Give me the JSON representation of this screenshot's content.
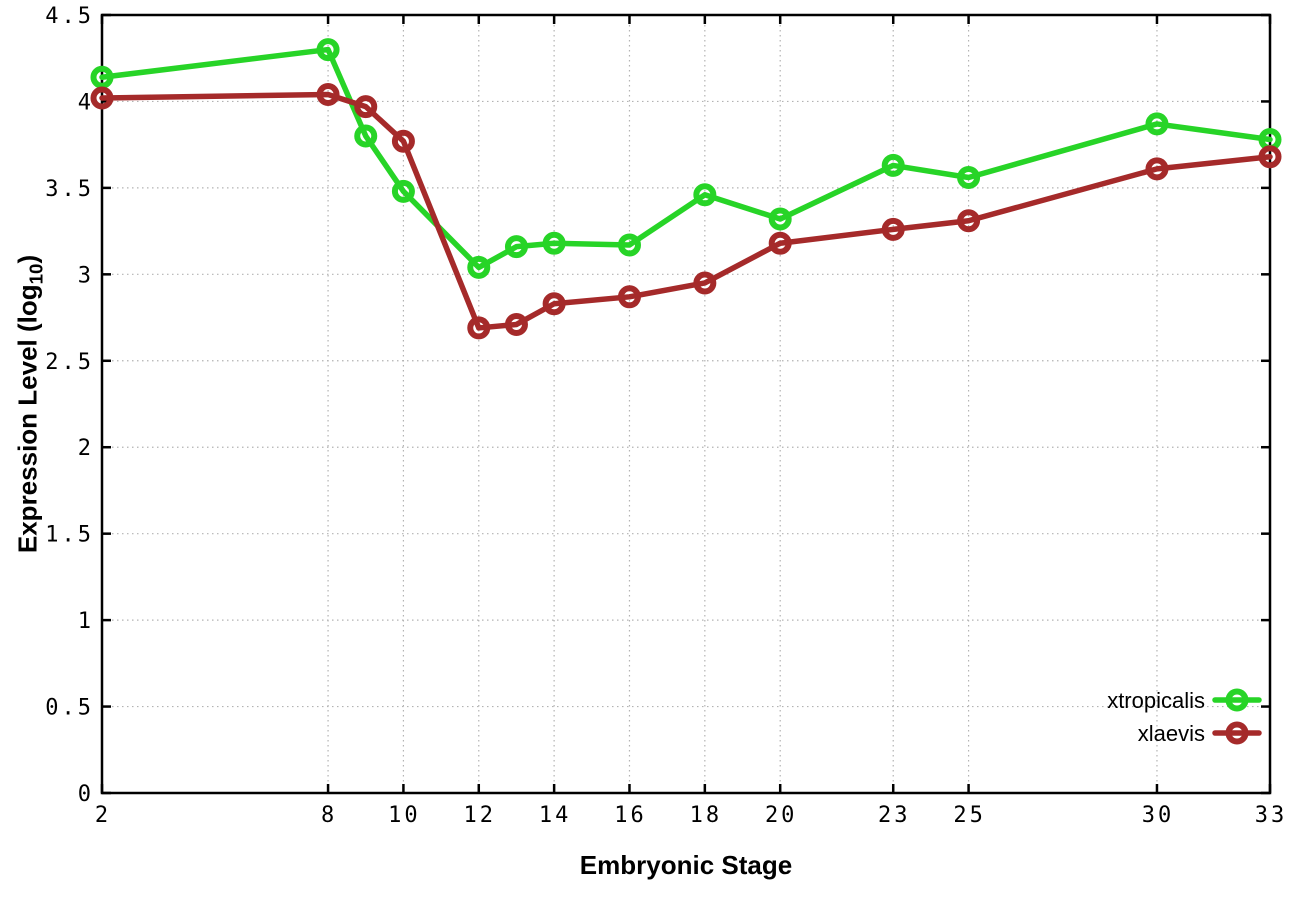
{
  "chart_data": {
    "type": "line",
    "title": "",
    "xlabel": "Embryonic Stage",
    "ylabel": "Expression Level (log10)",
    "ylabel_base": "Expression Level (log",
    "ylabel_sub": "10",
    "ylabel_close": ")",
    "x": [
      2,
      8,
      9,
      10,
      12,
      13,
      14,
      16,
      18,
      20,
      23,
      25,
      30,
      33
    ],
    "series": [
      {
        "name": "xtropicalis",
        "color": "#27d427",
        "values": [
          4.14,
          4.3,
          3.8,
          3.48,
          3.04,
          3.16,
          3.18,
          3.17,
          3.46,
          3.32,
          3.63,
          3.56,
          3.87,
          3.78
        ]
      },
      {
        "name": "xlaevis",
        "color": "#a52a2a",
        "values": [
          4.02,
          4.04,
          3.97,
          3.77,
          2.69,
          2.71,
          2.83,
          2.87,
          2.95,
          3.18,
          3.26,
          3.31,
          3.61,
          3.68
        ]
      }
    ],
    "xlim": [
      2,
      33
    ],
    "ylim": [
      0,
      4.5
    ],
    "xticks": [
      2,
      8,
      10,
      12,
      14,
      16,
      18,
      20,
      23,
      25,
      30,
      33
    ],
    "xtick_labels": [
      "2",
      "8",
      "10",
      "12",
      "14",
      "16",
      "18",
      "20",
      "23",
      "25",
      "30",
      "33"
    ],
    "yticks": [
      0,
      0.5,
      1,
      1.5,
      2,
      2.5,
      3,
      3.5,
      4,
      4.5
    ],
    "ytick_labels": [
      "0",
      "0.5",
      "1",
      "1.5",
      "2",
      "2.5",
      "3",
      "3.5",
      "4",
      "4.5"
    ],
    "grid": true,
    "grid_style": "dotted",
    "legend_position": "inside-bottom-right",
    "legend_entries": [
      "xtropicalis",
      "xlaevis"
    ],
    "colors": {
      "background": "#ffffff",
      "axis": "#000000",
      "grid": "#b3b3b3",
      "text": "#000000"
    }
  }
}
